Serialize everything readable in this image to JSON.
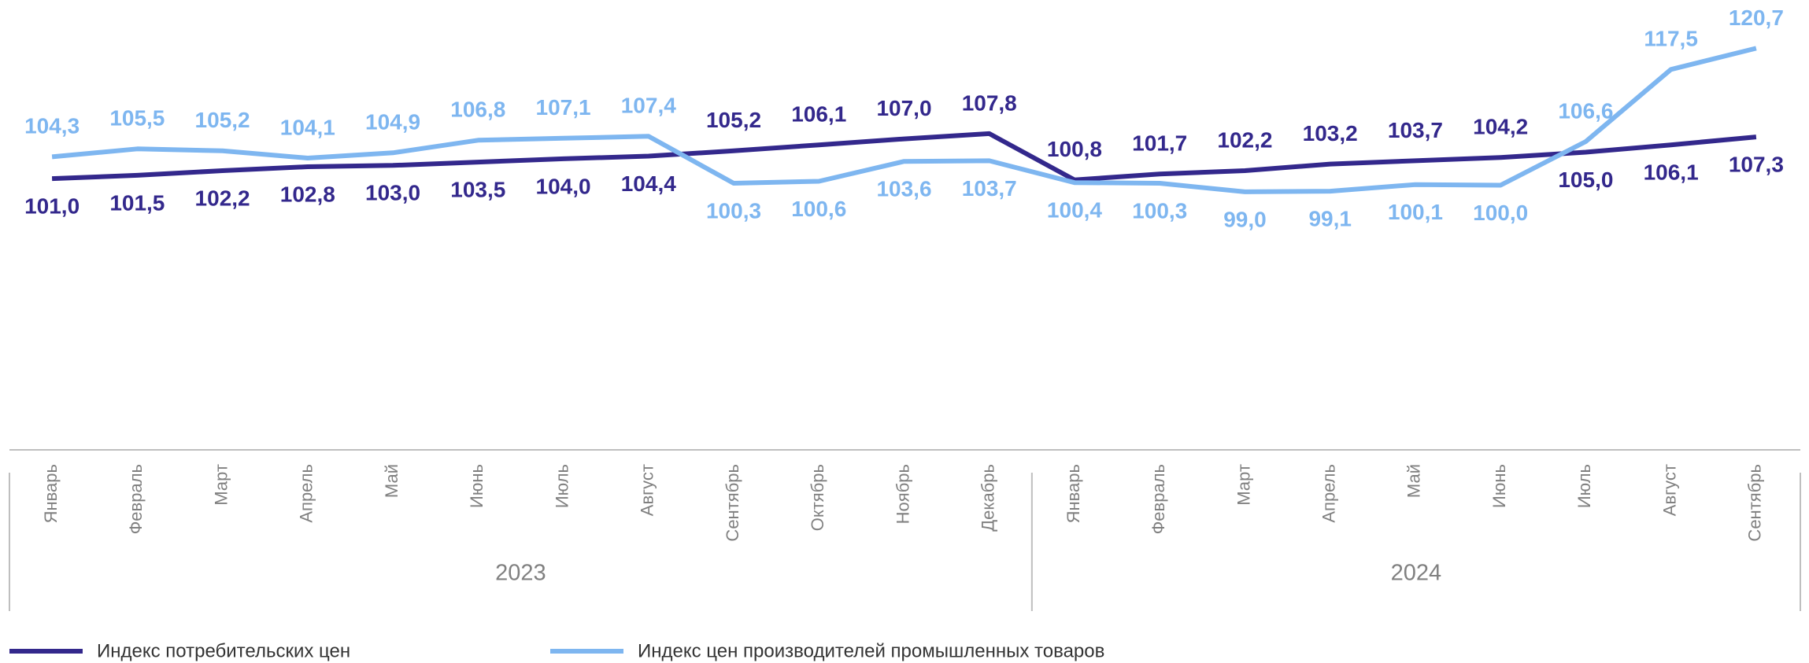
{
  "chart_data": {
    "type": "line",
    "categories": [
      "Январь",
      "Февраль",
      "Март",
      "Апрель",
      "Май",
      "Июнь",
      "Июль",
      "Август",
      "Сентябрь",
      "Октябрь",
      "Ноябрь",
      "Декабрь",
      "Январь",
      "Февраль",
      "Март",
      "Апрель",
      "Май",
      "Июнь",
      "Июль",
      "Август",
      "Сентябрь"
    ],
    "groups": [
      "2023",
      "2024"
    ],
    "ylim": [
      60,
      128
    ],
    "legend": "bottom",
    "series": [
      {
        "name": "Индекс потребительских цен",
        "color": "#33288c",
        "values": [
          101.0,
          101.5,
          102.2,
          102.8,
          103.0,
          103.5,
          104.0,
          104.4,
          105.2,
          106.1,
          107.0,
          107.8,
          100.8,
          101.7,
          102.2,
          103.2,
          103.7,
          104.2,
          105.0,
          106.1,
          107.3
        ],
        "value_labels": [
          "101,0",
          "101,5",
          "102,2",
          "102,8",
          "103,0",
          "103,5",
          "104,0",
          "104,4",
          "105,2",
          "106,1",
          "107,0",
          "107,8",
          "100,8",
          "101,7",
          "102,2",
          "103,2",
          "103,7",
          "104,2",
          "105,0",
          "106,1",
          "107,3"
        ]
      },
      {
        "name": "Индекс цен производителей промышленных товаров",
        "color": "#7eb6f0",
        "values": [
          104.3,
          105.5,
          105.2,
          104.1,
          104.9,
          106.8,
          107.1,
          107.4,
          100.3,
          100.6,
          103.6,
          103.7,
          100.4,
          100.3,
          99.0,
          99.1,
          100.1,
          100.0,
          106.6,
          117.5,
          120.7
        ],
        "value_labels": [
          "104,3",
          "105,5",
          "105,2",
          "104,1",
          "104,9",
          "106,8",
          "107,1",
          "107,4",
          "100,3",
          "100,6",
          "103,6",
          "103,7",
          "100,4",
          "100,3",
          "99,0",
          "99,1",
          "100,1",
          "100,0",
          "106,6",
          "117,5",
          "120,7"
        ]
      }
    ]
  }
}
